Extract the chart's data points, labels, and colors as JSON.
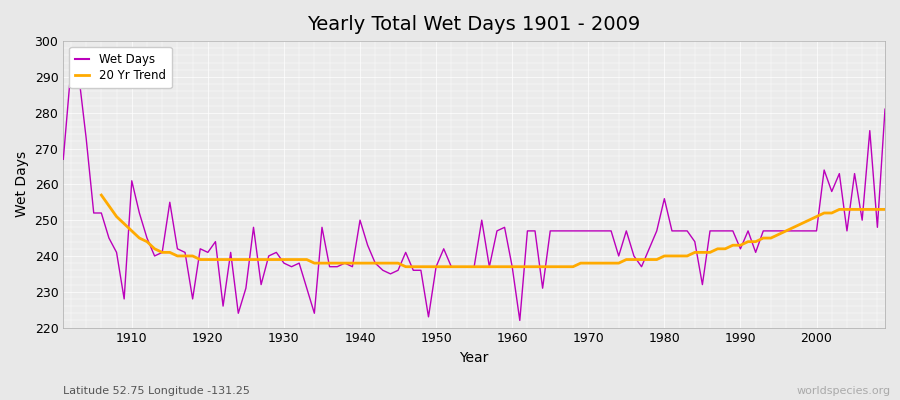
{
  "title": "Yearly Total Wet Days 1901 - 2009",
  "xlabel": "Year",
  "ylabel": "Wet Days",
  "subtitle": "Latitude 52.75 Longitude -131.25",
  "watermark": "worldspecies.org",
  "ylim": [
    220,
    300
  ],
  "xlim": [
    1901,
    2009
  ],
  "yticks": [
    220,
    230,
    240,
    250,
    260,
    270,
    280,
    290,
    300
  ],
  "xticks": [
    1910,
    1920,
    1930,
    1940,
    1950,
    1960,
    1970,
    1980,
    1990,
    2000
  ],
  "wet_days_color": "#bb00bb",
  "trend_color": "#ffaa00",
  "fig_bg_color": "#e8e8e8",
  "plot_bg_color": "#ebebeb",
  "grid_color": "#ffffff",
  "legend_wet": "Wet Days",
  "legend_trend": "20 Yr Trend",
  "years": [
    1901,
    1902,
    1903,
    1904,
    1905,
    1906,
    1907,
    1908,
    1909,
    1910,
    1911,
    1912,
    1913,
    1914,
    1915,
    1916,
    1917,
    1918,
    1919,
    1920,
    1921,
    1922,
    1923,
    1924,
    1925,
    1926,
    1927,
    1928,
    1929,
    1930,
    1931,
    1932,
    1933,
    1934,
    1935,
    1936,
    1937,
    1938,
    1939,
    1940,
    1941,
    1942,
    1943,
    1944,
    1945,
    1946,
    1947,
    1948,
    1949,
    1950,
    1951,
    1952,
    1953,
    1954,
    1955,
    1956,
    1957,
    1958,
    1959,
    1960,
    1961,
    1962,
    1963,
    1964,
    1965,
    1966,
    1967,
    1968,
    1969,
    1970,
    1971,
    1972,
    1973,
    1974,
    1975,
    1976,
    1977,
    1978,
    1979,
    1980,
    1981,
    1982,
    1983,
    1984,
    1985,
    1986,
    1987,
    1988,
    1989,
    1990,
    1991,
    1992,
    1993,
    1994,
    1995,
    1996,
    1997,
    1998,
    1999,
    2000,
    2001,
    2002,
    2003,
    2004,
    2005,
    2006,
    2007,
    2008,
    2009
  ],
  "wet_days": [
    267,
    292,
    291,
    273,
    252,
    252,
    245,
    241,
    228,
    261,
    252,
    245,
    240,
    241,
    255,
    242,
    241,
    228,
    242,
    241,
    244,
    226,
    241,
    224,
    231,
    248,
    232,
    240,
    241,
    238,
    237,
    238,
    231,
    224,
    248,
    237,
    237,
    238,
    237,
    250,
    243,
    238,
    236,
    235,
    236,
    241,
    236,
    236,
    223,
    237,
    242,
    237,
    237,
    237,
    237,
    250,
    237,
    247,
    248,
    237,
    222,
    247,
    247,
    231,
    247,
    247,
    247,
    247,
    247,
    247,
    247,
    247,
    247,
    240,
    247,
    240,
    237,
    242,
    247,
    256,
    247,
    247,
    247,
    244,
    232,
    247,
    247,
    247,
    247,
    242,
    247,
    241,
    247,
    247,
    247,
    247,
    247,
    247,
    247,
    247,
    264,
    258,
    263,
    247,
    263,
    250,
    275,
    248,
    281
  ],
  "trend_values": [
    null,
    null,
    null,
    null,
    null,
    257,
    254,
    251,
    249,
    247,
    245,
    244,
    242,
    241,
    241,
    240,
    240,
    240,
    239,
    239,
    239,
    239,
    239,
    239,
    239,
    239,
    239,
    239,
    239,
    239,
    239,
    239,
    239,
    238,
    238,
    238,
    238,
    238,
    238,
    238,
    238,
    238,
    238,
    238,
    238,
    237,
    237,
    237,
    237,
    237,
    237,
    237,
    237,
    237,
    237,
    237,
    237,
    237,
    237,
    237,
    237,
    237,
    237,
    237,
    237,
    237,
    237,
    237,
    238,
    238,
    238,
    238,
    238,
    238,
    239,
    239,
    239,
    239,
    239,
    240,
    240,
    240,
    240,
    241,
    241,
    241,
    242,
    242,
    243,
    243,
    244,
    244,
    245,
    245,
    246,
    247,
    248,
    249,
    250,
    251,
    252,
    252,
    253,
    253,
    253,
    253,
    253,
    253,
    253
  ]
}
